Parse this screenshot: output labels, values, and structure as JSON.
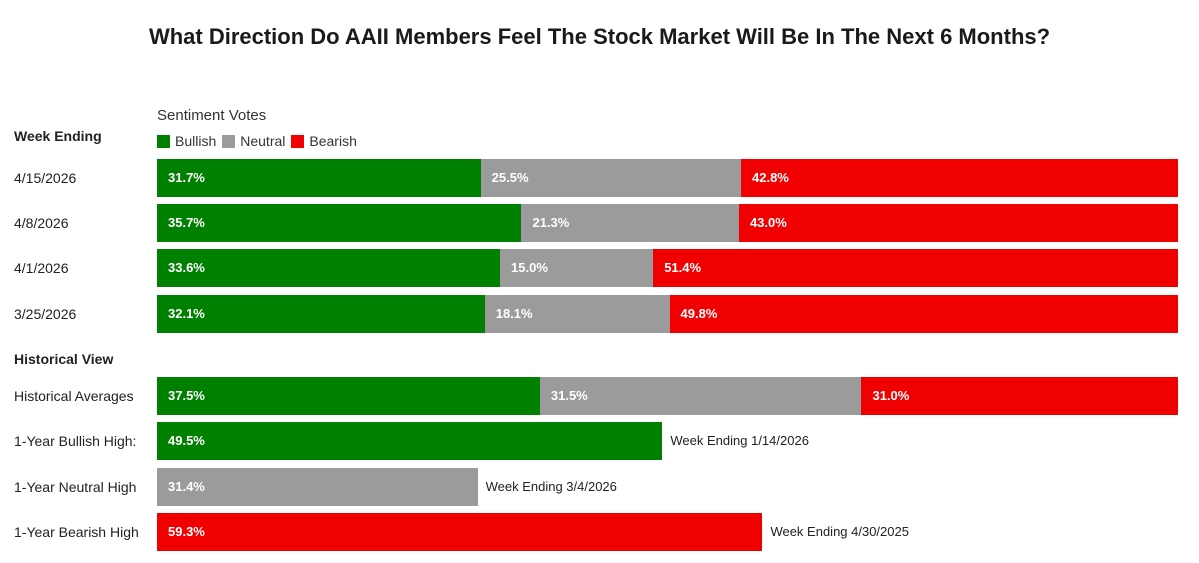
{
  "colors": {
    "bullish": "#008000",
    "neutral": "#9b9b9b",
    "bearish": "#f00000"
  },
  "chart_data": {
    "type": "bar",
    "stacked": true,
    "orientation": "horizontal",
    "title": "What Direction Do AAII Members Feel The Stock Market Will Be In The Next 6 Months?",
    "legend_title": "Sentiment Votes",
    "legend": [
      "Bullish",
      "Neutral",
      "Bearish"
    ],
    "weekly_header": "Week Ending",
    "historical_header": "Historical View",
    "weekly": [
      {
        "week": "4/15/2026",
        "bullish": 31.7,
        "neutral": 25.5,
        "bearish": 42.8,
        "bullish_label": "31.7%",
        "neutral_label": "25.5%",
        "bearish_label": "42.8%"
      },
      {
        "week": "4/8/2026",
        "bullish": 35.7,
        "neutral": 21.3,
        "bearish": 43.0,
        "bullish_label": "35.7%",
        "neutral_label": "21.3%",
        "bearish_label": "43.0%"
      },
      {
        "week": "4/1/2026",
        "bullish": 33.6,
        "neutral": 15.0,
        "bearish": 51.4,
        "bullish_label": "33.6%",
        "neutral_label": "15.0%",
        "bearish_label": "51.4%"
      },
      {
        "week": "3/25/2026",
        "bullish": 32.1,
        "neutral": 18.1,
        "bearish": 49.8,
        "bullish_label": "32.1%",
        "neutral_label": "18.1%",
        "bearish_label": "49.8%"
      }
    ],
    "historical_averages": {
      "label": "Historical Averages",
      "bullish": 37.5,
      "neutral": 31.5,
      "bearish": 31.0,
      "bullish_label": "37.5%",
      "neutral_label": "31.5%",
      "bearish_label": "31.0%"
    },
    "highs": [
      {
        "label": "1-Year Bullish High:",
        "series": "bullish",
        "value": 49.5,
        "value_label": "49.5%",
        "note": "Week Ending 1/14/2026"
      },
      {
        "label": "1-Year Neutral High",
        "series": "neutral",
        "value": 31.4,
        "value_label": "31.4%",
        "note": "Week Ending 3/4/2026"
      },
      {
        "label": "1-Year Bearish High",
        "series": "bearish",
        "value": 59.3,
        "value_label": "59.3%",
        "note": "Week Ending 4/30/2025"
      }
    ],
    "xlim": [
      0,
      100
    ]
  }
}
